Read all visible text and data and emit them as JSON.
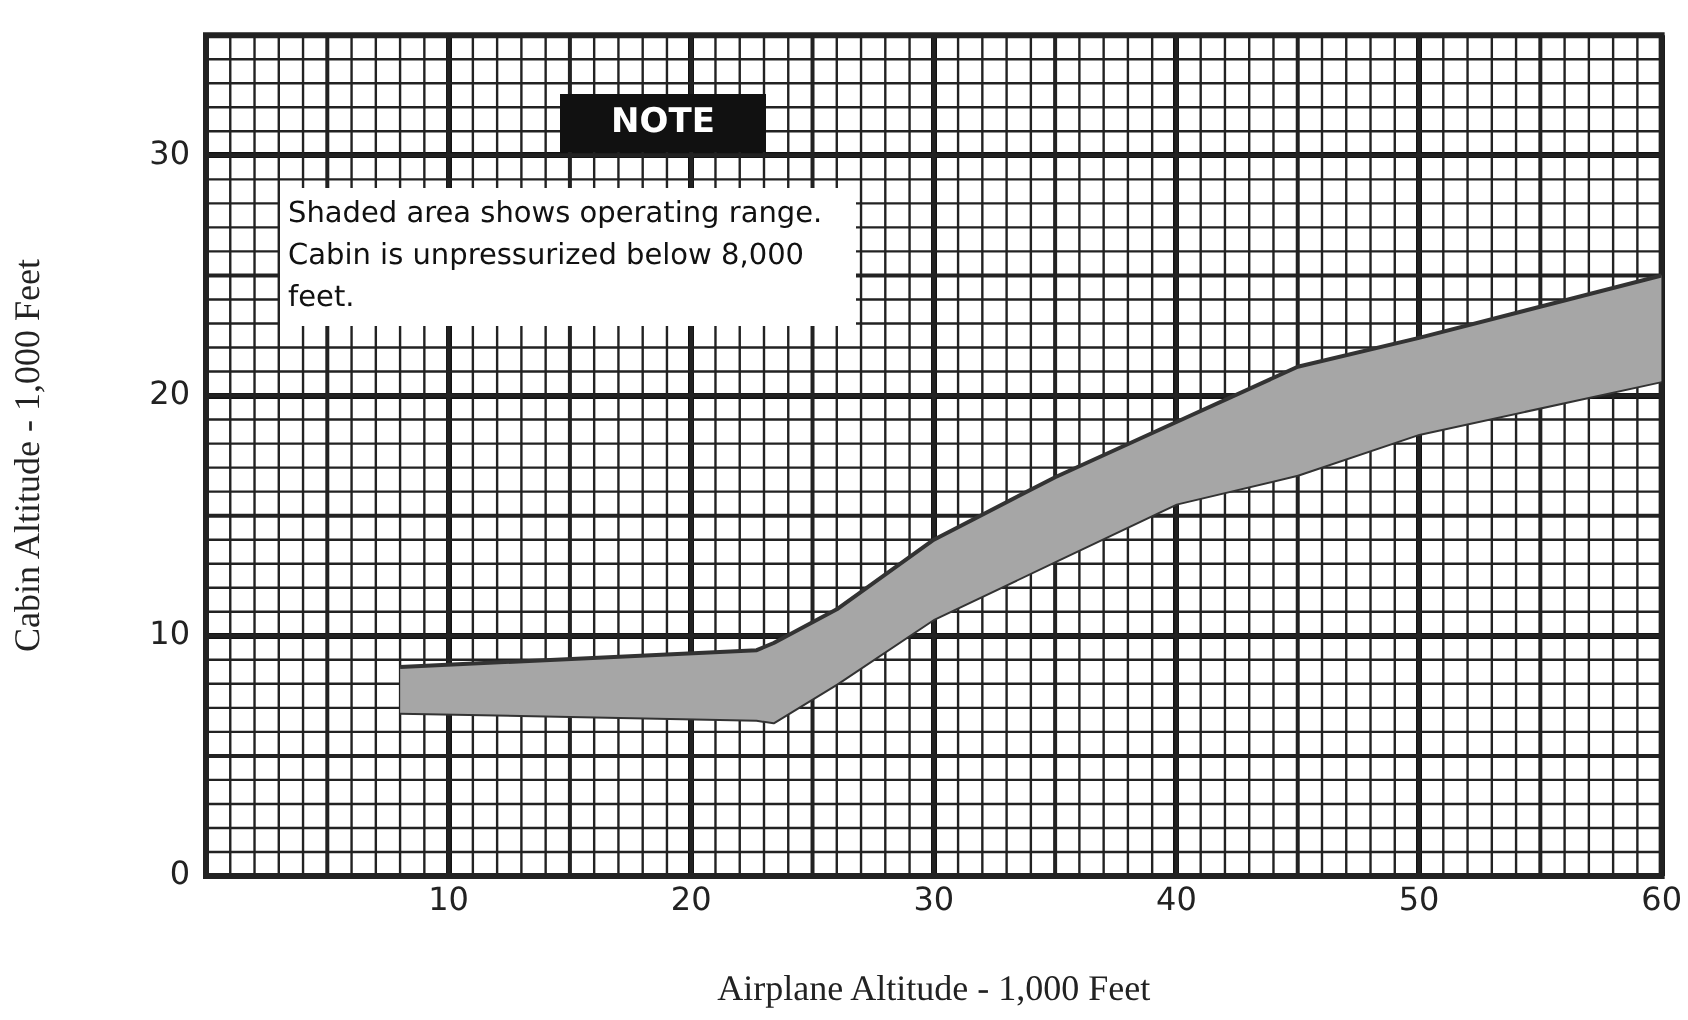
{
  "chart_data": {
    "type": "area",
    "xlabel": "Airplane Altitude - 1,000 Feet",
    "ylabel": "Cabin Altitude - 1,000 Feet",
    "annotations": [
      "NOTE",
      "Shaded area shows operating range. Cabin is unpressurized below 8,000 feet."
    ],
    "xlim": [
      0,
      60
    ],
    "xticks": [
      10,
      20,
      30,
      40,
      50,
      60
    ],
    "ylim": [
      0,
      35
    ],
    "yticks": [
      0,
      10,
      20,
      30
    ],
    "grid": true,
    "legend": false,
    "series": [
      {
        "color": "#a6a6a6",
        "x": [
          8,
          22.7,
          23.4,
          26,
          30,
          35,
          40,
          45,
          50,
          60
        ],
        "values": [
          8.7,
          9.4,
          9.7,
          11.1,
          14.0,
          16.6,
          18.9,
          21.2,
          22.4,
          25.0
        ]
      },
      {
        "type": "line",
        "color": "#333333",
        "x": [
          8,
          22.7,
          23.4,
          26,
          30,
          35,
          40,
          45,
          50,
          60
        ],
        "values": [
          6.8,
          6.5,
          6.4,
          8.0,
          10.7,
          13.1,
          15.5,
          16.7,
          18.4,
          20.6
        ]
      }
    ]
  }
}
